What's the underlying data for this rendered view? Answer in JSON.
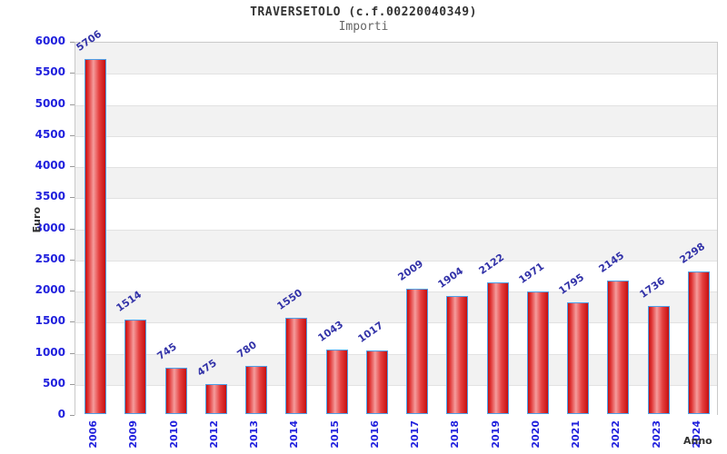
{
  "chart_data": {
    "type": "bar",
    "title": "TRAVERSETOLO (c.f.00220040349)",
    "subtitle": "Importi",
    "xlabel": "Anno",
    "ylabel": "Euro",
    "categories": [
      "2006",
      "2009",
      "2010",
      "2012",
      "2013",
      "2014",
      "2015",
      "2016",
      "2017",
      "2018",
      "2019",
      "2020",
      "2021",
      "2022",
      "2023",
      "2024"
    ],
    "values": [
      5706,
      1514,
      745,
      475,
      780,
      1550,
      1043,
      1017,
      2009,
      1904,
      2122,
      1971,
      1795,
      2145,
      1736,
      2298
    ],
    "ylim": [
      0,
      6000
    ],
    "ytick_interval": 500,
    "yticks": [
      0,
      500,
      1000,
      1500,
      2000,
      2500,
      3000,
      3500,
      4000,
      4500,
      5000,
      5500,
      6000
    ],
    "grid": "horizontal-bands-alternating",
    "legend": "none",
    "colors": {
      "bar_fill_dark": "#c61010",
      "bar_fill_light": "#f59c9c",
      "bar_border": "#4d9fe8",
      "axis_tick_label": "#2121dd",
      "value_label": "#3232a8",
      "axis_title": "#333333",
      "title": "#333333",
      "subtitle": "#666666",
      "band_gray": "#f2f2f2",
      "band_white": "#ffffff",
      "plot_border": "#c9c9c9",
      "gridline": "#e2e2e2"
    }
  }
}
